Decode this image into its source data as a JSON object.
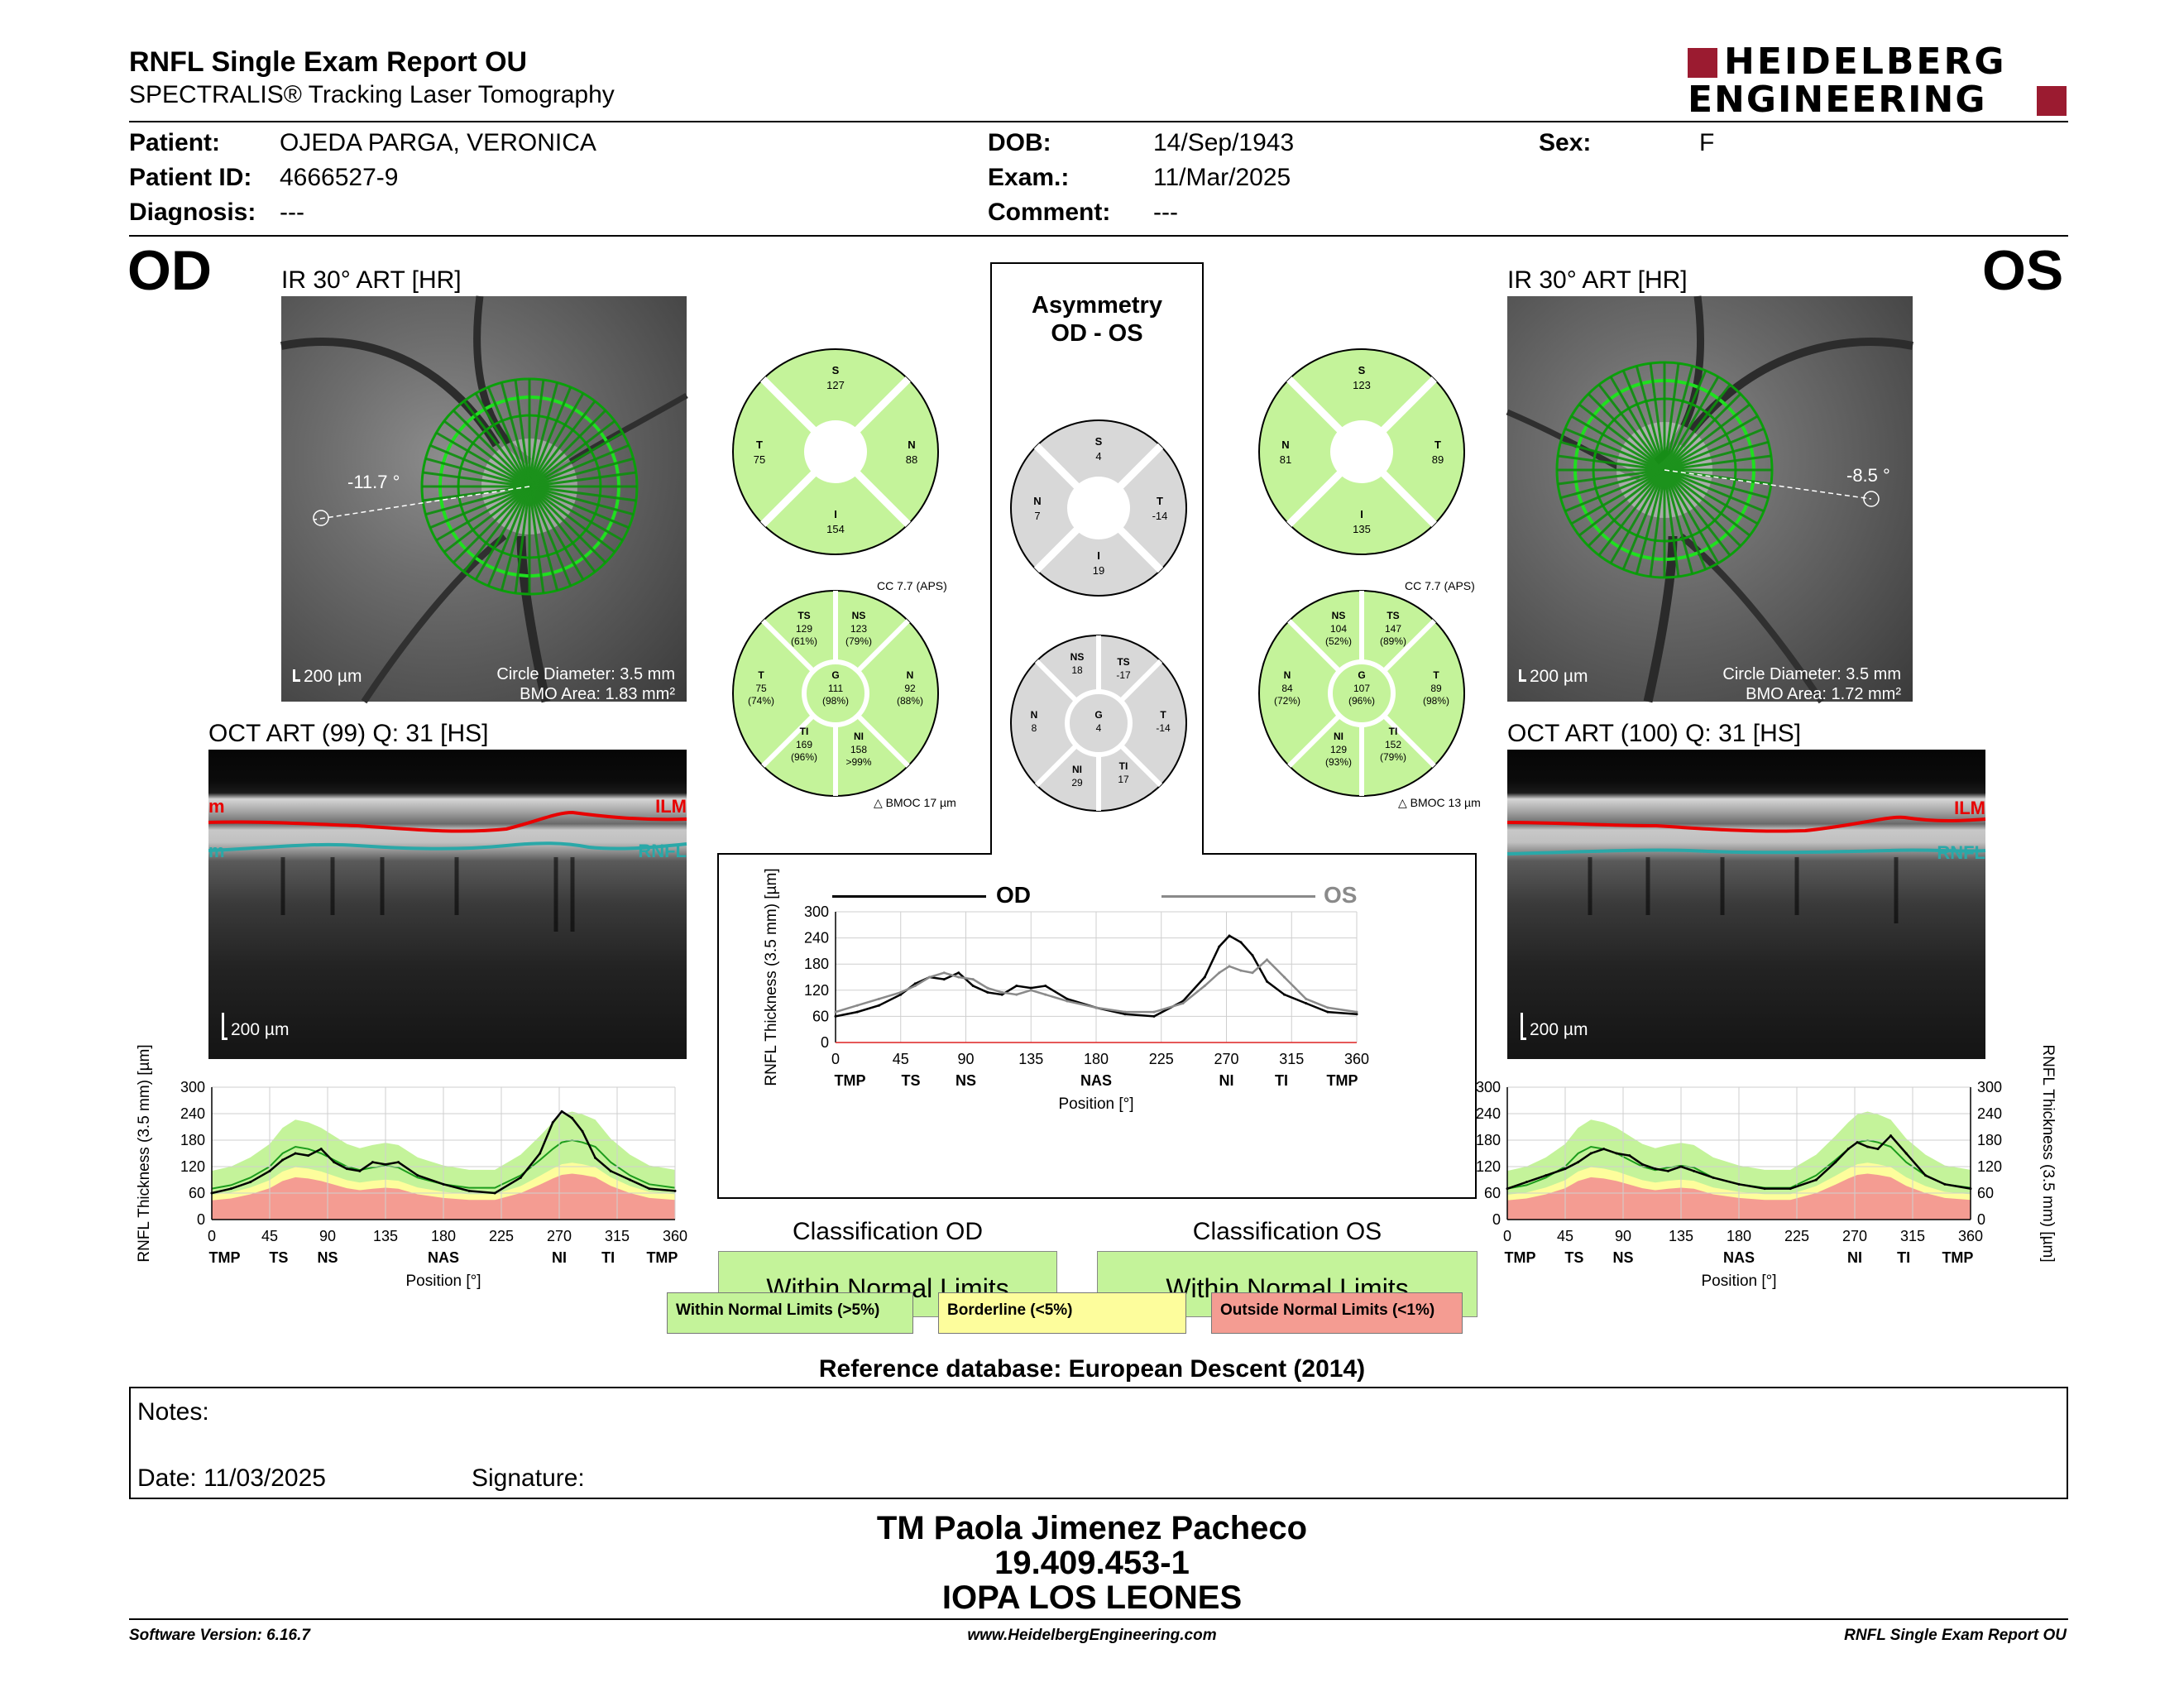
{
  "header": {
    "title": "RNFL Single Exam Report OU",
    "subtitle": "SPECTRALIS® Tracking Laser Tomography",
    "logo_line1": "HEIDELBERG",
    "logo_line2": "ENGINEERING"
  },
  "patient": {
    "patient_label": "Patient:",
    "patient_value": "OJEDA PARGA, VERONICA",
    "id_label": "Patient ID:",
    "id_value": "4666527-9",
    "diagnosis_label": "Diagnosis:",
    "diagnosis_value": "---",
    "dob_label": "DOB:",
    "dob_value": "14/Sep/1943",
    "exam_label": "Exam.:",
    "exam_value": "11/Mar/2025",
    "comment_label": "Comment:",
    "comment_value": "---",
    "sex_label": "Sex:",
    "sex_value": "F"
  },
  "eyes": {
    "od_label": "OD",
    "os_label": "OS",
    "od_ir_title": "IR 30° ART [HR]",
    "os_ir_title": "IR 30° ART [HR]",
    "od_angle": "-11.7 °",
    "os_angle": "-8.5 °",
    "od_circle": "Circle Diameter: 3.5 mm",
    "od_bmo": "BMO Area: 1.83 mm²",
    "os_circle": "Circle Diameter: 3.5 mm",
    "os_bmo": "BMO Area: 1.72 mm²",
    "scale": "200 µm",
    "od_oct_title": "OCT ART (99) Q: 31 [HS]",
    "os_oct_title": "OCT ART (100) Q: 31 [HS]",
    "ilm": "ILM",
    "rnfl": "RNFL",
    "m_left": "m"
  },
  "asymmetry": {
    "title_line1": "Asymmetry",
    "title_line2": "OD - OS"
  },
  "sectors": {
    "od_quad": {
      "S": "127",
      "N": "88",
      "I": "154",
      "T": "75"
    },
    "os_quad": {
      "S": "123",
      "N": "81",
      "I": "135",
      "T": "89"
    },
    "asym_quad": {
      "S": "4",
      "N": "7",
      "I": "19",
      "T": "-14"
    },
    "cc_od": "CC 7.7 (APS)",
    "cc_os": "CC 7.7 (APS)",
    "bmoc_od": "BMOC 17 µm",
    "bmoc_os": "BMOC 13 µm",
    "od_six": {
      "TS": [
        "129",
        "(61%)"
      ],
      "NS": [
        "123",
        "(79%)"
      ],
      "T": [
        "75",
        "(74%)"
      ],
      "G": [
        "111",
        "(98%)"
      ],
      "N": [
        "92",
        "(88%)"
      ],
      "TI": [
        "169",
        "(96%)"
      ],
      "NI": [
        "158",
        ">99%"
      ]
    },
    "os_six": {
      "NS": [
        "104",
        "(52%)"
      ],
      "TS": [
        "147",
        "(89%)"
      ],
      "N": [
        "84",
        "(72%)"
      ],
      "G": [
        "107",
        "(96%)"
      ],
      "T": [
        "89",
        "(98%)"
      ],
      "NI": [
        "129",
        "(93%)"
      ],
      "TI": [
        "152",
        "(79%)"
      ]
    },
    "asym_six": {
      "NS": "18",
      "TS": "-17",
      "N": "8",
      "G": "4",
      "T": "-14",
      "NI": "29",
      "TI": "17"
    }
  },
  "center_chart": {
    "od_legend": "OD",
    "os_legend": "OS"
  },
  "classification": {
    "od_title": "Classification OD",
    "os_title": "Classification OS",
    "od_result": "Within Normal Limits",
    "os_result": "Within Normal Limits",
    "legend_green": "Within Normal Limits (>5%)",
    "legend_yellow": "Borderline (<5%)",
    "legend_red": "Outside Normal Limits (<1%)",
    "reference": "Reference database: European Descent (2014)"
  },
  "notes": {
    "notes_label": "Notes:",
    "date_label": "Date: 11/03/2025",
    "signature_label": "Signature:"
  },
  "signer": {
    "name": "TM Paola Jimenez Pacheco",
    "rut": "19.409.453-1",
    "org": "IOPA LOS LEONES"
  },
  "footer": {
    "version": "Software Version: 6.16.7",
    "url": "www.HeidelbergEngineering.com",
    "report": "RNFL Single Exam Report OU"
  },
  "colors": {
    "normal_green": "#c4f39a",
    "borderline_yellow": "#fdfd9c",
    "outside_red": "#f49c92",
    "ilm_red": "#e80000",
    "rnfl_teal": "#2aa8a8",
    "scan_green": "#1fd01f",
    "logo_red": "#9b1b30"
  },
  "chart_data": [
    {
      "id": "od_profile",
      "type": "line",
      "ylabel": "RNFL Thickness (3.5 mm) [µm]",
      "xlabel": "Position [°]",
      "xlim": [
        0,
        360
      ],
      "ylim": [
        0,
        300
      ],
      "xticks": [
        0,
        45,
        90,
        135,
        180,
        225,
        270,
        315,
        360
      ],
      "yticks": [
        0,
        60,
        120,
        180,
        240,
        300
      ],
      "sector_labels": [
        "TMP",
        "TS",
        "NS",
        "NAS",
        "NI",
        "TI",
        "TMP"
      ],
      "x": [
        0,
        15,
        30,
        45,
        55,
        65,
        75,
        85,
        95,
        105,
        115,
        125,
        135,
        145,
        160,
        180,
        200,
        220,
        240,
        255,
        265,
        272,
        280,
        288,
        298,
        310,
        325,
        340,
        360
      ],
      "series": [
        {
          "name": "OD",
          "values": [
            60,
            70,
            85,
            110,
            135,
            150,
            145,
            160,
            130,
            115,
            110,
            130,
            125,
            130,
            100,
            80,
            65,
            60,
            95,
            150,
            220,
            245,
            230,
            200,
            140,
            110,
            90,
            70,
            65
          ]
        }
      ]
    },
    {
      "id": "center_profile",
      "type": "line",
      "ylabel": "RNFL Thickness (3.5 mm) [µm]",
      "xlabel": "Position [°]",
      "xlim": [
        0,
        360
      ],
      "ylim": [
        0,
        300
      ],
      "xticks": [
        0,
        45,
        90,
        135,
        180,
        225,
        270,
        315,
        360
      ],
      "yticks": [
        0,
        60,
        120,
        180,
        240,
        300
      ],
      "sector_labels": [
        "TMP",
        "TS",
        "NS",
        "NAS",
        "NI",
        "TI",
        "TMP"
      ],
      "x": [
        0,
        15,
        30,
        45,
        55,
        65,
        75,
        85,
        95,
        105,
        115,
        125,
        135,
        145,
        160,
        180,
        200,
        220,
        240,
        255,
        265,
        272,
        280,
        288,
        298,
        310,
        325,
        340,
        360
      ],
      "series": [
        {
          "name": "OD",
          "values": [
            60,
            70,
            85,
            110,
            135,
            150,
            145,
            160,
            130,
            115,
            110,
            130,
            125,
            130,
            100,
            80,
            65,
            60,
            95,
            150,
            220,
            245,
            230,
            200,
            140,
            110,
            90,
            70,
            65
          ]
        },
        {
          "name": "OS",
          "values": [
            70,
            85,
            100,
            115,
            130,
            150,
            160,
            150,
            145,
            125,
            115,
            110,
            120,
            110,
            95,
            80,
            70,
            70,
            90,
            130,
            160,
            175,
            165,
            160,
            190,
            150,
            100,
            80,
            70
          ]
        }
      ]
    },
    {
      "id": "os_profile",
      "type": "line",
      "ylabel": "RNFL Thickness (3.5 mm) [µm]",
      "xlabel": "Position [°]",
      "xlim": [
        0,
        360
      ],
      "ylim": [
        0,
        300
      ],
      "xticks": [
        0,
        45,
        90,
        135,
        180,
        225,
        270,
        315,
        360
      ],
      "yticks": [
        0,
        60,
        120,
        180,
        240,
        300
      ],
      "sector_labels": [
        "TMP",
        "TS",
        "NS",
        "NAS",
        "NI",
        "TI",
        "TMP"
      ],
      "x": [
        0,
        15,
        30,
        45,
        55,
        65,
        75,
        85,
        95,
        105,
        115,
        125,
        135,
        145,
        160,
        180,
        200,
        220,
        240,
        255,
        265,
        272,
        280,
        288,
        298,
        310,
        325,
        340,
        360
      ],
      "series": [
        {
          "name": "OS",
          "values": [
            70,
            85,
            100,
            115,
            130,
            150,
            160,
            150,
            145,
            125,
            115,
            110,
            120,
            110,
            95,
            80,
            70,
            70,
            90,
            130,
            160,
            175,
            165,
            160,
            190,
            150,
            100,
            80,
            70
          ]
        }
      ]
    }
  ]
}
